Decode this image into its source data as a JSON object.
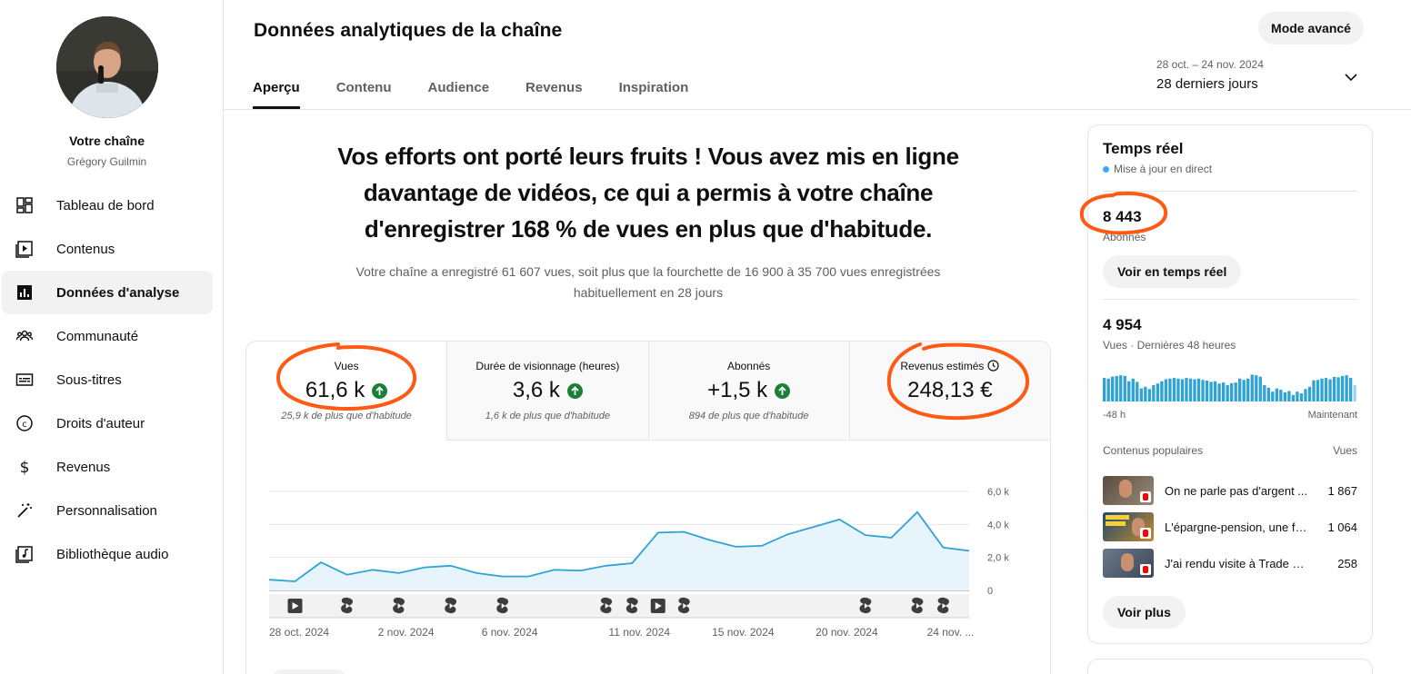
{
  "channel": {
    "title": "Votre chaîne",
    "name": "Grégory Guilmin"
  },
  "sidebar": {
    "items": [
      {
        "label": "Tableau de bord",
        "icon": "dashboard-icon"
      },
      {
        "label": "Contenus",
        "icon": "content-icon"
      },
      {
        "label": "Données d'analyse",
        "icon": "analytics-icon",
        "active": true
      },
      {
        "label": "Communauté",
        "icon": "community-icon"
      },
      {
        "label": "Sous-titres",
        "icon": "subtitles-icon"
      },
      {
        "label": "Droits d'auteur",
        "icon": "copyright-icon"
      },
      {
        "label": "Revenus",
        "icon": "dollar-icon"
      },
      {
        "label": "Personnalisation",
        "icon": "magic-wand-icon"
      },
      {
        "label": "Bibliothèque audio",
        "icon": "audio-library-icon"
      }
    ]
  },
  "header": {
    "title": "Données analytiques de la chaîne",
    "advanced_label": "Mode avancé",
    "tabs": [
      "Aperçu",
      "Contenu",
      "Audience",
      "Revenus",
      "Inspiration"
    ],
    "date_range": "28 oct. – 24 nov. 2024",
    "date_label": "28 derniers jours"
  },
  "headline": "Vos efforts ont porté leurs fruits ! Vous avez mis en ligne davantage de vidéos, ce qui a permis à votre chaîne d'enregistrer 168 % de vues en plus que d'habitude.",
  "subline": "Votre chaîne a enregistré 61 607 vues, soit plus que la fourchette de 16 900 à 35 700 vues enregistrées habituellement en 28 jours",
  "metrics": [
    {
      "label": "Vues",
      "value": "61,6 k",
      "note": "25,9 k de plus que d'habitude"
    },
    {
      "label": "Durée de visionnage (heures)",
      "value": "3,6 k",
      "note": "1,6 k de plus que d'habitude"
    },
    {
      "label": "Abonnés",
      "value": "+1,5 k",
      "note": "894 de plus que d'habitude"
    },
    {
      "label": "Revenus estimés",
      "value": "248,13 €",
      "note": ""
    }
  ],
  "colors": {
    "accent": "#2ea3d4",
    "fill": "#e8f4fb",
    "annotation": "#ff5a14",
    "up": "#1a7f37"
  },
  "chart_data": {
    "type": "area",
    "series": [
      {
        "values": [
          0.65,
          0.55,
          1.7,
          0.95,
          1.25,
          1.05,
          1.4,
          1.5,
          1.05,
          0.85,
          0.85,
          1.25,
          1.2,
          1.5,
          1.65,
          3.5,
          3.55,
          3.05,
          2.65,
          2.7,
          3.4,
          3.85,
          4.3,
          3.35,
          3.2,
          4.75,
          2.6,
          2.4
        ]
      }
    ],
    "x_ticks": [
      "28 oct. 2024",
      "2 nov. 2024",
      "6 nov. 2024",
      "11 nov. 2024",
      "15 nov. 2024",
      "20 nov. 2024",
      "24 nov. ..."
    ],
    "x_tick_index": [
      0,
      5,
      9,
      14,
      18,
      22,
      26
    ],
    "y_ticks": [
      "0",
      "2,0 k",
      "4,0 k",
      "6,0 k"
    ],
    "ylim": [
      0,
      6000
    ],
    "markers": [
      {
        "day": 1,
        "type": "video"
      },
      {
        "day": 3,
        "type": "short"
      },
      {
        "day": 5,
        "type": "short"
      },
      {
        "day": 7,
        "type": "short"
      },
      {
        "day": 9,
        "type": "short"
      },
      {
        "day": 13,
        "type": "short"
      },
      {
        "day": 14,
        "type": "short"
      },
      {
        "day": 15,
        "type": "video"
      },
      {
        "day": 16,
        "type": "short"
      },
      {
        "day": 23,
        "type": "short"
      },
      {
        "day": 25,
        "type": "short"
      },
      {
        "day": 26,
        "type": "short"
      }
    ]
  },
  "realtime": {
    "title": "Temps réel",
    "live_label": "Mise à jour en direct",
    "subscribers": "8 443",
    "subscribers_label": "Abonnés",
    "realtime_button": "Voir en temps réel",
    "views": "4 954",
    "views_label": "Vues · Dernières 48 heures",
    "axis_left": "-48 h",
    "axis_right": "Maintenant",
    "popular_header": "Contenus populaires",
    "popular_value_header": "Vues",
    "popular": [
      {
        "title": "On ne parle pas d'argent ...",
        "views": "1 867"
      },
      {
        "title": "L'épargne-pension, une fa...",
        "views": "1 064"
      },
      {
        "title": "J'ai rendu visite à Trade Re...",
        "views": "258"
      }
    ],
    "more_button": "Voir plus",
    "spark_values": [
      0.72,
      0.7,
      0.76,
      0.78,
      0.8,
      0.78,
      0.62,
      0.7,
      0.6,
      0.4,
      0.45,
      0.38,
      0.5,
      0.55,
      0.62,
      0.68,
      0.7,
      0.72,
      0.7,
      0.68,
      0.72,
      0.7,
      0.68,
      0.7,
      0.66,
      0.64,
      0.6,
      0.62,
      0.55,
      0.58,
      0.5,
      0.56,
      0.58,
      0.7,
      0.66,
      0.7,
      0.82,
      0.8,
      0.76,
      0.5,
      0.42,
      0.3,
      0.4,
      0.36,
      0.28,
      0.32,
      0.2,
      0.3,
      0.25,
      0.38,
      0.45,
      0.65,
      0.66,
      0.7,
      0.72,
      0.68,
      0.75,
      0.74,
      0.78,
      0.8,
      0.72,
      0.5
    ]
  }
}
